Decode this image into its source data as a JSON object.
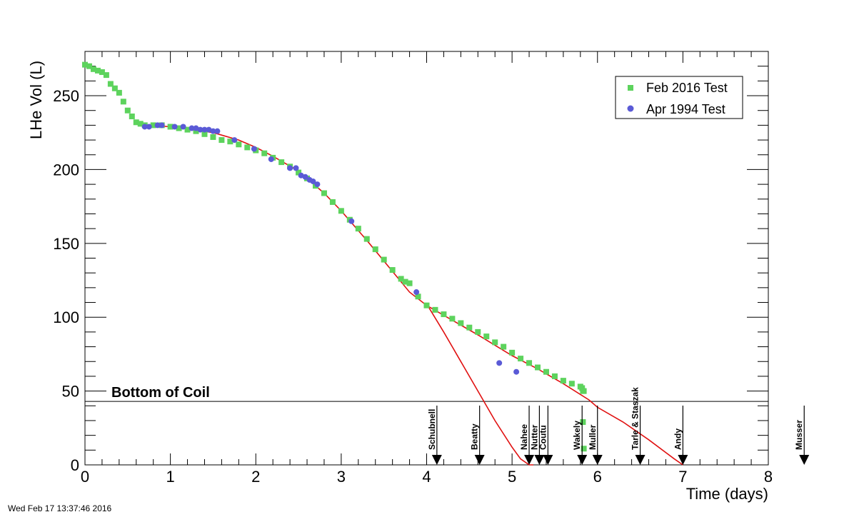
{
  "timestamp": "Wed Feb 17 13:37:46 2016",
  "chart_data": {
    "type": "scatter",
    "xlabel": "Time (days)",
    "ylabel": "LHe Vol (L)",
    "xlim": [
      0,
      8
    ],
    "ylim": [
      0,
      280
    ],
    "x_ticks": [
      0,
      1,
      2,
      3,
      4,
      5,
      6,
      7,
      8
    ],
    "y_ticks": [
      0,
      50,
      100,
      150,
      200,
      250
    ],
    "grid": false,
    "legend_position": "top-right",
    "colors": {
      "feb2016": "#5dd35d",
      "apr1994": "#5a5ad6",
      "fit": "#e01010",
      "reference": "#000000"
    },
    "series": [
      {
        "name": "Feb 2016 Test",
        "marker": "square",
        "x": [
          0.0,
          0.05,
          0.1,
          0.15,
          0.2,
          0.25,
          0.3,
          0.35,
          0.4,
          0.45,
          0.5,
          0.55,
          0.6,
          0.65,
          0.7,
          0.8,
          0.9,
          1.0,
          1.1,
          1.2,
          1.3,
          1.4,
          1.5,
          1.6,
          1.7,
          1.8,
          1.9,
          2.0,
          2.1,
          2.2,
          2.3,
          2.4,
          2.5,
          2.6,
          2.7,
          2.8,
          2.9,
          3.0,
          3.1,
          3.2,
          3.3,
          3.4,
          3.5,
          3.6,
          3.7,
          3.75,
          3.8,
          3.9,
          4.0,
          4.1,
          4.2,
          4.3,
          4.4,
          4.5,
          4.6,
          4.7,
          4.8,
          4.9,
          5.0,
          5.1,
          5.2,
          5.3,
          5.4,
          5.5,
          5.6,
          5.7,
          5.8,
          5.82,
          5.83,
          5.84
        ],
        "y": [
          271,
          270,
          268,
          267,
          266,
          264,
          258,
          255,
          252,
          246,
          240,
          236,
          232,
          231,
          230,
          230,
          230,
          229,
          228,
          227,
          226,
          224,
          222,
          220,
          219,
          217,
          215,
          213,
          211,
          208,
          205,
          202,
          198,
          194,
          189,
          184,
          178,
          172,
          166,
          160,
          153,
          146,
          139,
          132,
          126,
          124,
          123,
          114,
          108,
          105,
          102,
          99,
          96,
          93,
          90,
          87,
          83,
          80,
          76,
          72,
          69,
          66,
          63,
          60,
          57,
          55,
          53,
          52,
          50,
          50
        ]
      },
      {
        "name": "",
        "marker": "square",
        "x": [
          5.83,
          5.84
        ],
        "y": [
          29,
          11
        ]
      },
      {
        "name": "Apr 1994 Test",
        "marker": "circle",
        "x": [
          0.7,
          0.75,
          0.85,
          0.9,
          1.05,
          1.15,
          1.25,
          1.3,
          1.35,
          1.4,
          1.45,
          1.5,
          1.55,
          1.75,
          1.98,
          2.18,
          2.4,
          2.47,
          2.53,
          2.58,
          2.63,
          2.67,
          2.72,
          3.12,
          3.88,
          4.85,
          5.05
        ],
        "y": [
          229,
          229,
          230,
          230,
          229,
          229,
          228,
          228,
          227,
          227,
          227,
          226,
          226,
          220,
          214,
          207,
          201,
          201,
          196,
          195,
          193,
          192,
          190,
          165,
          117,
          69,
          63
        ]
      },
      {
        "name": "",
        "marker": "line",
        "x": [
          0.75,
          1.0,
          1.5,
          1.8,
          2.0,
          2.2,
          2.5,
          2.8,
          3.0,
          3.3,
          3.6,
          3.8,
          4.0,
          4.3,
          4.6,
          5.0,
          5.3,
          5.6,
          5.9,
          6.0,
          6.3,
          6.6,
          6.9,
          7.0
        ],
        "y": [
          230,
          229,
          225,
          220,
          215,
          209,
          199,
          184,
          172,
          152,
          131,
          117,
          108,
          98,
          88,
          74,
          65,
          55,
          44,
          39,
          29,
          17,
          4,
          0
        ]
      },
      {
        "name": "",
        "marker": "line",
        "x": [
          4.0,
          4.2,
          4.4,
          4.6,
          4.8,
          5.0,
          5.1,
          5.2,
          5.25
        ],
        "y": [
          109,
          90,
          70,
          50,
          30,
          12,
          4,
          0,
          0
        ]
      }
    ],
    "reference_line": {
      "y": 43,
      "label": "Bottom of Coil"
    },
    "event_markers": [
      {
        "x": 4.12,
        "label": "Schubnell"
      },
      {
        "x": 4.62,
        "label": "Beatty"
      },
      {
        "x": 5.2,
        "label": "Nahee"
      },
      {
        "x": 5.32,
        "label": "Nutter"
      },
      {
        "x": 5.42,
        "label": "Coutu"
      },
      {
        "x": 5.82,
        "label": "Wakely"
      },
      {
        "x": 6.0,
        "label": "Muller"
      },
      {
        "x": 6.5,
        "label": "Tarle & Staszak"
      },
      {
        "x": 7.0,
        "label": "Andy"
      },
      {
        "x": 8.42,
        "label": "Musser"
      }
    ]
  }
}
